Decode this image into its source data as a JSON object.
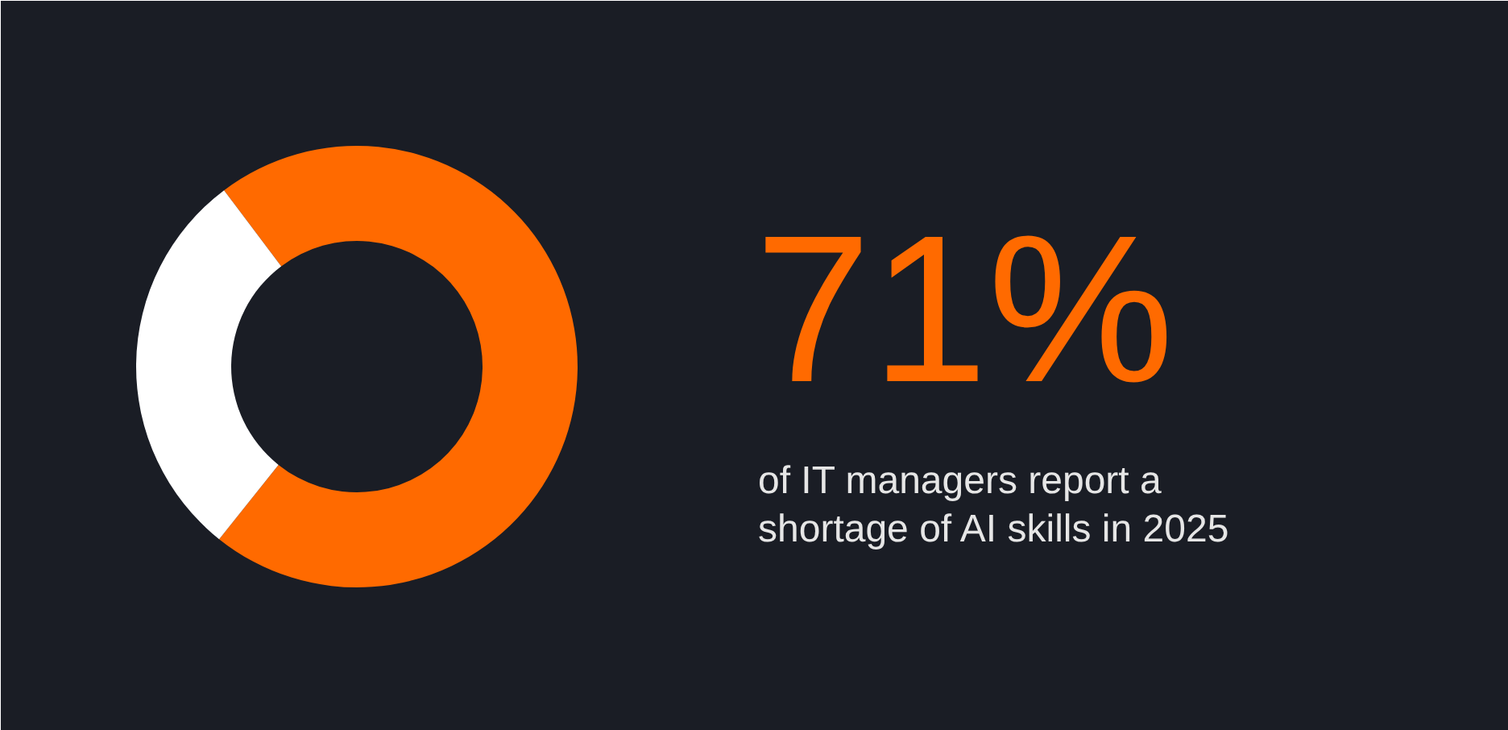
{
  "chart_data": {
    "type": "donut",
    "subtitle": "of IT managers report a shortage of AI skills in 2025",
    "categories": [
      null,
      null
    ],
    "values": [
      71,
      29
    ],
    "colors": [
      "#ff6a00",
      "#ffffff"
    ],
    "value_labels": [
      "71%",
      null
    ]
  }
}
